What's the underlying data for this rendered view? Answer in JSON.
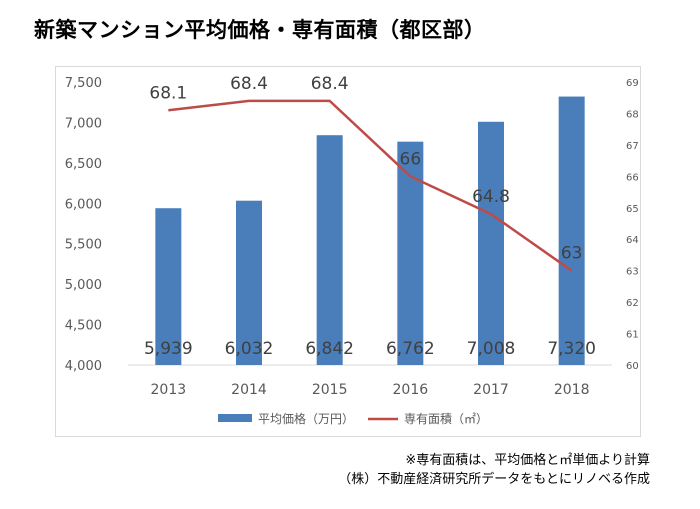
{
  "title": "新築マンション平均価格・専有面積（都区部）",
  "notes": {
    "line1": "※専有面積は、平均価格と㎡単価より計算",
    "line2": "（株）不動産経済研究所データをもとにリノベる作成"
  },
  "chart_data": {
    "type": "bar",
    "categories": [
      "2013",
      "2014",
      "2015",
      "2016",
      "2017",
      "2018"
    ],
    "series": [
      {
        "name": "平均価格（万円）",
        "type": "bar",
        "axis": "left",
        "color": "#4a7ebb",
        "values": [
          5939,
          6032,
          6842,
          6762,
          7008,
          7320
        ],
        "labels": [
          "5,939",
          "6,032",
          "6,842",
          "6,762",
          "7,008",
          "7,320"
        ]
      },
      {
        "name": "専有面積（㎡）",
        "type": "line",
        "axis": "right",
        "color": "#be4b48",
        "values": [
          68.1,
          68.4,
          68.4,
          66,
          64.8,
          63
        ],
        "labels": [
          "68.1",
          "68.4",
          "68.4",
          "66",
          "64.8",
          "63"
        ]
      }
    ],
    "y_left": {
      "range": [
        4000,
        7500
      ],
      "ticks": [
        "4,000",
        "4,500",
        "5,000",
        "5,500",
        "6,000",
        "6,500",
        "7,000",
        "7,500"
      ]
    },
    "y_right": {
      "range": [
        60,
        69
      ],
      "ticks": [
        "60",
        "61",
        "62",
        "63",
        "64",
        "65",
        "66",
        "67",
        "68",
        "69"
      ]
    },
    "grid": false,
    "legend": "bottom"
  }
}
